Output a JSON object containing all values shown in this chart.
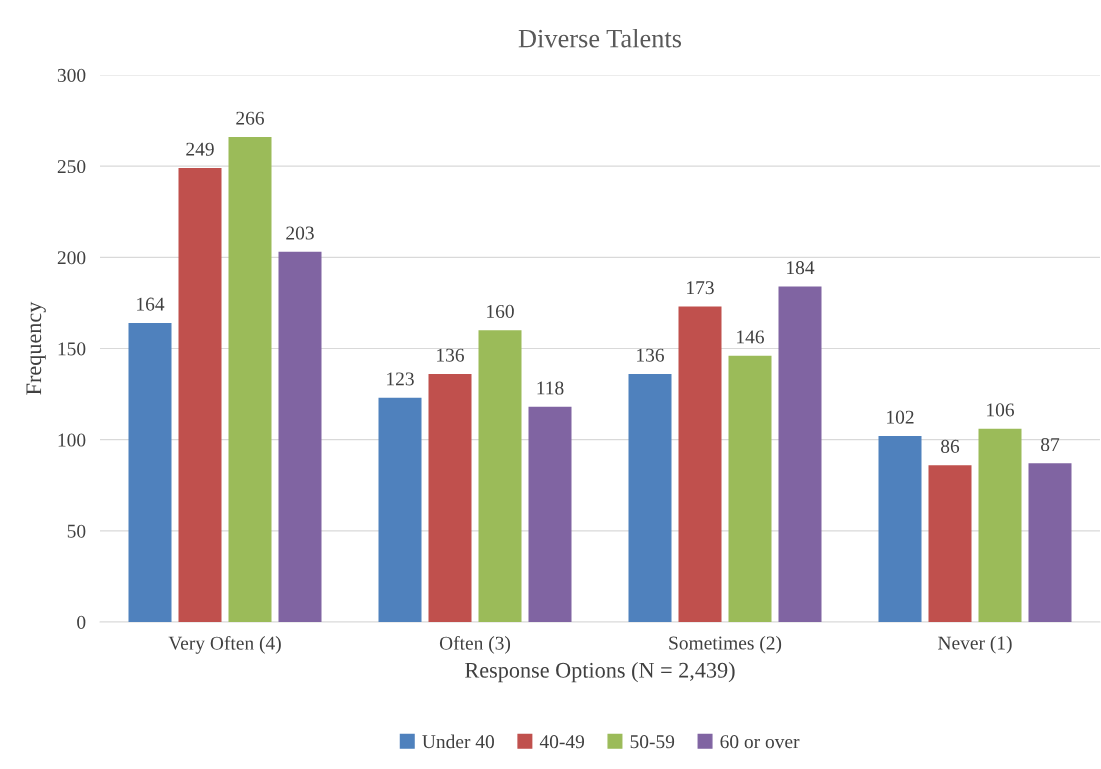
{
  "chart_data": {
    "type": "bar",
    "title": "Diverse Talents",
    "xlabel": "Response Options (N = 2,439)",
    "ylabel": "Frequency",
    "categories": [
      "Very Often (4)",
      "Often (3)",
      "Sometimes (2)",
      "Never (1)"
    ],
    "series": [
      {
        "name": "Under 40",
        "color": "#4f81bd",
        "values": [
          164,
          123,
          136,
          102
        ]
      },
      {
        "name": "40-49",
        "color": "#c0504d",
        "values": [
          249,
          136,
          173,
          86
        ]
      },
      {
        "name": "50-59",
        "color": "#9bbb59",
        "values": [
          266,
          160,
          146,
          106
        ]
      },
      {
        "name": "60 or over",
        "color": "#8064a2",
        "values": [
          203,
          118,
          184,
          87
        ]
      }
    ],
    "ylim": [
      0,
      300
    ],
    "yticks": [
      0,
      50,
      100,
      150,
      200,
      250,
      300
    ],
    "grid": "y",
    "legend": "bottom",
    "data_labels": true
  }
}
